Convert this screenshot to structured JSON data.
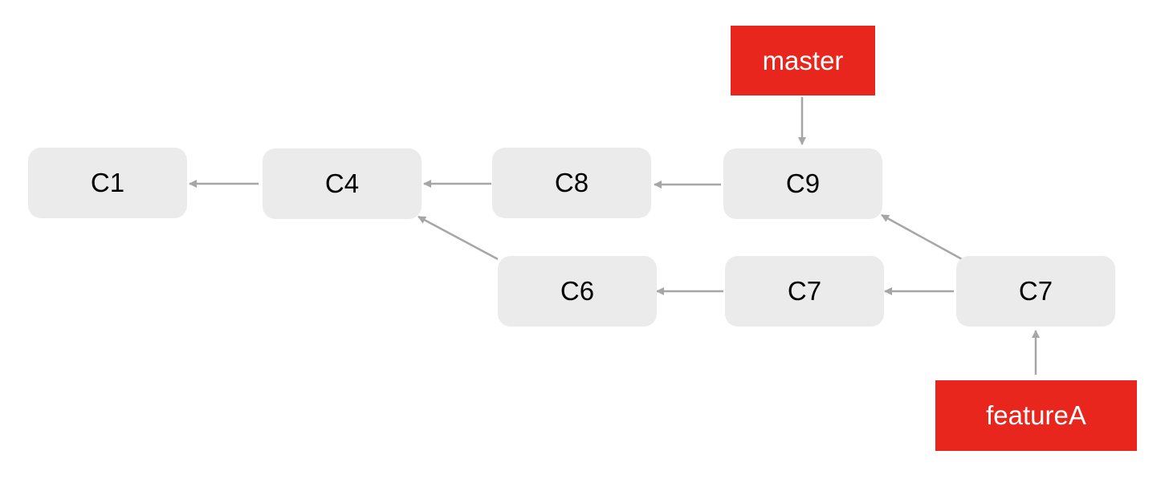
{
  "commits": [
    {
      "id": "c1",
      "label": "C1"
    },
    {
      "id": "c4",
      "label": "C4"
    },
    {
      "id": "c8",
      "label": "C8"
    },
    {
      "id": "c9",
      "label": "C9"
    },
    {
      "id": "c6",
      "label": "C6"
    },
    {
      "id": "c7a",
      "label": "C7"
    },
    {
      "id": "c7b",
      "label": "C7"
    }
  ],
  "refs": {
    "master": {
      "label": "master"
    },
    "featureA": {
      "label": "featureA"
    }
  },
  "colors": {
    "commit_fill": "#ebebeb",
    "ref_fill": "#e8261e",
    "arrow": "#a6a6a6"
  }
}
